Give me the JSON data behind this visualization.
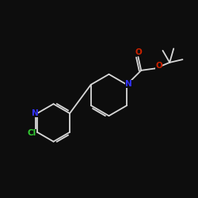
{
  "background_color": "#0d0d0d",
  "bond_color": "#d8d8d8",
  "atom_colors": {
    "N_pyridine": "#3333ff",
    "N_piperidine": "#3333ff",
    "O": "#cc2200",
    "Cl": "#33cc33",
    "C": "#d8d8d8"
  },
  "fig_bg": "#0d0d0d",
  "lw": 1.3,
  "fs": 7.0
}
